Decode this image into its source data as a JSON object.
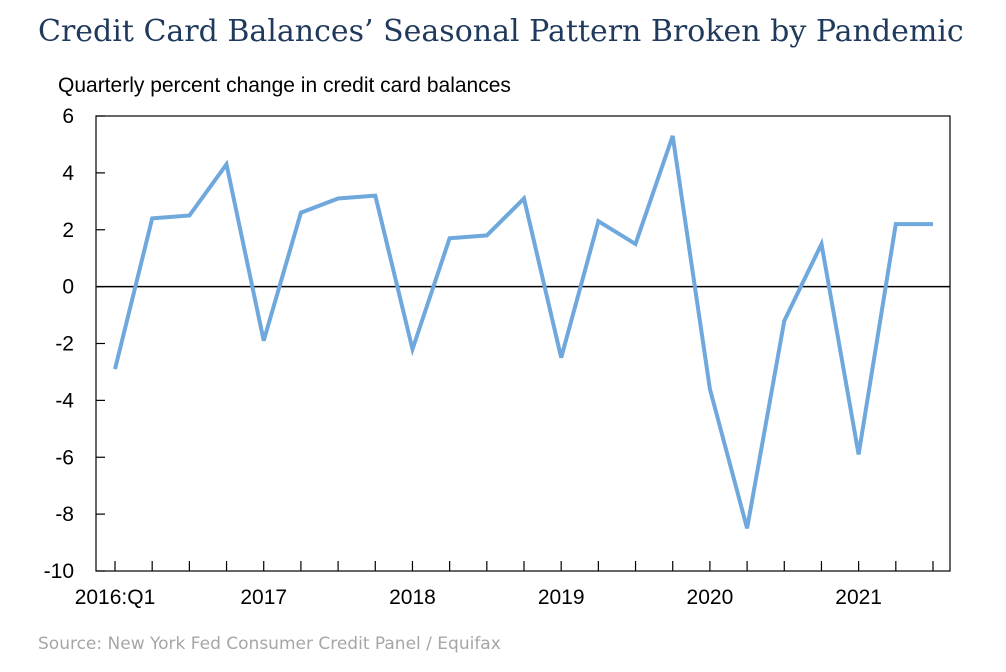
{
  "header": {
    "title": "Credit Card Balances’ Seasonal Pattern Broken by Pandemic",
    "subtitle": "Quarterly percent change in credit card balances"
  },
  "footer": {
    "source": "Source: New York Fed Consumer Credit Panel / Equifax"
  },
  "colors": {
    "line": "#6fa8dc",
    "title": "#1f3a5c",
    "axis": "#000000",
    "source": "#a6a6a6"
  },
  "chart_data": {
    "type": "line",
    "title": "Credit Card Balances’ Seasonal Pattern Broken by Pandemic",
    "subtitle": "Quarterly percent change in credit card balances",
    "xlabel": "",
    "ylabel": "",
    "ylim": [
      -10,
      6
    ],
    "yticks": [
      6,
      4,
      2,
      0,
      -2,
      -4,
      -6,
      -8,
      -10
    ],
    "xtick_labels": [
      {
        "index": 0,
        "label": "2016:Q1"
      },
      {
        "index": 4,
        "label": "2017"
      },
      {
        "index": 8,
        "label": "2018"
      },
      {
        "index": 12,
        "label": "2019"
      },
      {
        "index": 16,
        "label": "2020"
      },
      {
        "index": 20,
        "label": "2021"
      }
    ],
    "grid": false,
    "zero_line": true,
    "x": [
      "2016:Q1",
      "2016:Q2",
      "2016:Q3",
      "2016:Q4",
      "2017:Q1",
      "2017:Q2",
      "2017:Q3",
      "2017:Q4",
      "2018:Q1",
      "2018:Q2",
      "2018:Q3",
      "2018:Q4",
      "2019:Q1",
      "2019:Q2",
      "2019:Q3",
      "2019:Q4",
      "2020:Q1",
      "2020:Q2",
      "2020:Q3",
      "2020:Q4",
      "2021:Q1",
      "2021:Q2",
      "2021:Q3"
    ],
    "series": [
      {
        "values": [
          -2.9,
          2.4,
          2.5,
          4.3,
          -1.9,
          2.6,
          3.1,
          3.2,
          -2.2,
          1.7,
          1.8,
          3.1,
          -2.5,
          2.3,
          1.5,
          5.3,
          -3.6,
          -8.5,
          -1.2,
          1.5,
          -5.9,
          2.2,
          2.2
        ]
      }
    ]
  }
}
